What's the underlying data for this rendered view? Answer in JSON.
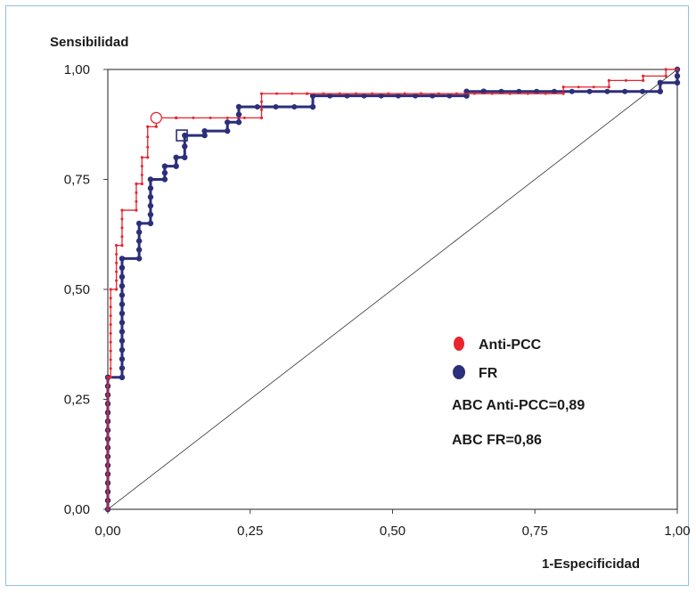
{
  "chart_data": {
    "type": "line",
    "ylabel": "Sensibilidad",
    "xlabel": "1-Especificidad",
    "xlim": [
      0,
      1
    ],
    "ylim": [
      0,
      1
    ],
    "xticks": [
      "0,00",
      "0,25",
      "0,50",
      "0,75",
      "1,00"
    ],
    "yticks": [
      "0,00",
      "0,25",
      "0,50",
      "0,75",
      "1,00"
    ],
    "grid": false,
    "legend_position": "lower-right",
    "series": [
      {
        "name": "Anti-PCC",
        "color": "#e8242c",
        "x": [
          0,
          0,
          0.005,
          0.005,
          0.015,
          0.015,
          0.025,
          0.025,
          0.05,
          0.05,
          0.06,
          0.06,
          0.07,
          0.07,
          0.085,
          0.085,
          0.12,
          0.12,
          0.27,
          0.27,
          0.35,
          0.35,
          0.55,
          0.55,
          0.8,
          0.8,
          0.88,
          0.88,
          0.94,
          0.94,
          0.98,
          0.98,
          1.0
        ],
        "y": [
          0,
          0.3,
          0.3,
          0.5,
          0.5,
          0.6,
          0.6,
          0.68,
          0.68,
          0.74,
          0.74,
          0.8,
          0.8,
          0.87,
          0.87,
          0.89,
          0.89,
          0.89,
          0.89,
          0.945,
          0.945,
          0.945,
          0.945,
          0.945,
          0.945,
          0.96,
          0.96,
          0.975,
          0.975,
          0.985,
          0.985,
          1.0,
          1.0
        ],
        "marker_x": [
          0.085
        ],
        "marker_y": [
          0.89
        ]
      },
      {
        "name": "FR",
        "color": "#2b2f7a",
        "x": [
          0,
          0,
          0.025,
          0.025,
          0.055,
          0.055,
          0.075,
          0.075,
          0.1,
          0.1,
          0.12,
          0.12,
          0.135,
          0.135,
          0.17,
          0.17,
          0.21,
          0.21,
          0.23,
          0.23,
          0.36,
          0.36,
          0.63,
          0.63,
          0.66,
          0.66,
          0.97,
          0.97,
          1.0,
          1.0
        ],
        "y": [
          0,
          0.3,
          0.3,
          0.57,
          0.57,
          0.65,
          0.65,
          0.75,
          0.75,
          0.78,
          0.78,
          0.8,
          0.8,
          0.85,
          0.85,
          0.86,
          0.86,
          0.88,
          0.88,
          0.915,
          0.915,
          0.94,
          0.94,
          0.95,
          0.95,
          0.95,
          0.95,
          0.97,
          0.97,
          1.0
        ],
        "marker_x": [
          0.13
        ],
        "marker_y": [
          0.85
        ]
      }
    ],
    "reference_line": {
      "x": [
        0,
        1
      ],
      "y": [
        0,
        1
      ],
      "color": "#333333"
    },
    "annotations": [
      "ABC Anti-PCC=0,89",
      "ABC FR=0,86"
    ]
  }
}
